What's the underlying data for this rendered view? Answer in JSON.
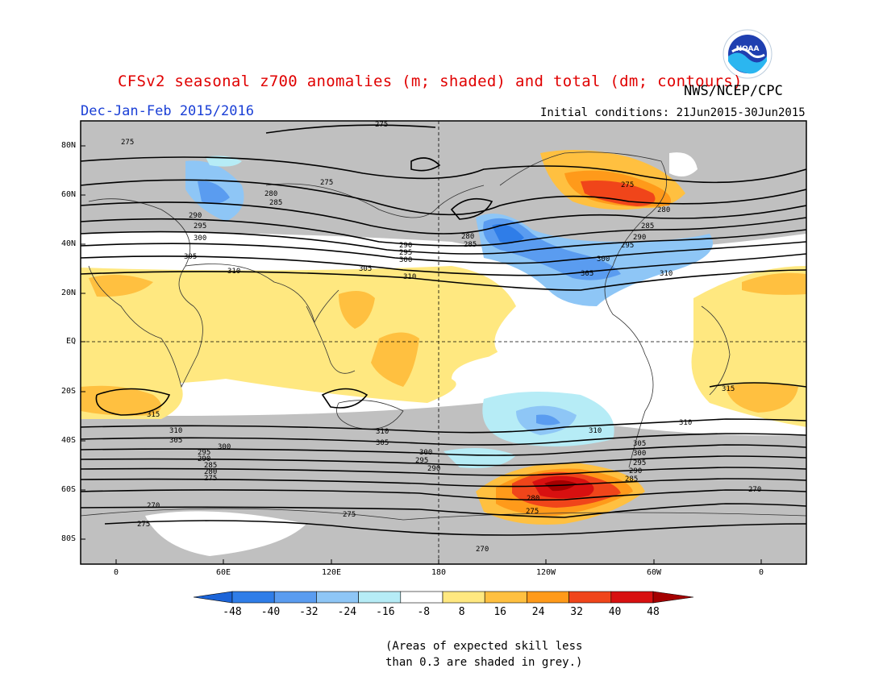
{
  "header": {
    "title": "CFSv2 seasonal z700 anomalies (m; shaded) and total (dm; contours)",
    "agency": "NWS/NCEP/CPC",
    "season": "Dec-Jan-Feb 2015/2016",
    "initial_conditions": "Initial conditions: 21Jun2015-30Jun2015",
    "logo_text": "NOAA"
  },
  "map": {
    "lat_labels": [
      "80N",
      "60N",
      "40N",
      "20N",
      "EQ",
      "20S",
      "40S",
      "60S",
      "80S"
    ],
    "lon_labels": [
      "0",
      "60E",
      "120E",
      "180",
      "120W",
      "60W",
      "0"
    ],
    "contour_labels": [
      "270",
      "275",
      "280",
      "285",
      "290",
      "295",
      "300",
      "305",
      "310",
      "315"
    ]
  },
  "colorbar": {
    "ticks": [
      "-48",
      "-40",
      "-32",
      "-24",
      "-16",
      "-8",
      "8",
      "16",
      "24",
      "32",
      "40",
      "48"
    ],
    "colors": [
      "#1c64d8",
      "#2f7de8",
      "#5a9cf0",
      "#8ec6f6",
      "#b6ecf6",
      "#ffffff",
      "#ffe880",
      "#ffc040",
      "#ff9a1a",
      "#f0451a",
      "#d81010",
      "#a40000"
    ]
  },
  "note": {
    "line1": "(Areas of expected skill less",
    "line2": "than 0.3 are shaded in grey.)"
  }
}
